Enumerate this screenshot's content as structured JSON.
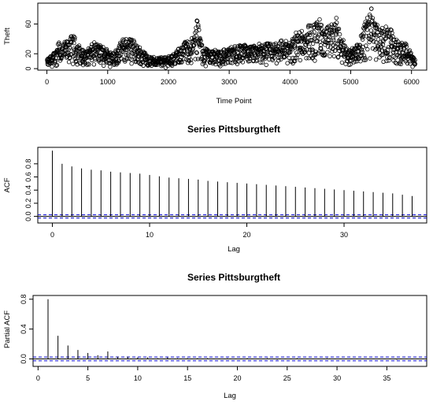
{
  "chart_data": [
    {
      "type": "scatter",
      "title": "",
      "xlabel": "Time Point",
      "ylabel": "Theft",
      "xlim": [
        -150,
        6250
      ],
      "ylim": [
        -2,
        88
      ],
      "xticks": [
        0,
        1000,
        2000,
        3000,
        4000,
        5000,
        6000
      ],
      "yticks": [
        0,
        20,
        60
      ],
      "marker": "open-circle",
      "envelope": [
        [
          0,
          12
        ],
        [
          150,
          25
        ],
        [
          180,
          45
        ],
        [
          220,
          30
        ],
        [
          420,
          45
        ],
        [
          600,
          22
        ],
        [
          780,
          35
        ],
        [
          950,
          28
        ],
        [
          1100,
          22
        ],
        [
          1250,
          40
        ],
        [
          1380,
          42
        ],
        [
          1500,
          30
        ],
        [
          1700,
          15
        ],
        [
          1900,
          15
        ],
        [
          2100,
          20
        ],
        [
          2250,
          35
        ],
        [
          2400,
          42
        ],
        [
          2470,
          70
        ],
        [
          2550,
          30
        ],
        [
          2700,
          25
        ],
        [
          2900,
          25
        ],
        [
          3050,
          30
        ],
        [
          3200,
          32
        ],
        [
          3400,
          30
        ],
        [
          3550,
          35
        ],
        [
          3700,
          32
        ],
        [
          3850,
          40
        ],
        [
          4000,
          35
        ],
        [
          4100,
          50
        ],
        [
          4200,
          55
        ],
        [
          4300,
          60
        ],
        [
          4400,
          62
        ],
        [
          4480,
          68
        ],
        [
          4550,
          50
        ],
        [
          4650,
          60
        ],
        [
          4750,
          68
        ],
        [
          4850,
          40
        ],
        [
          4950,
          25
        ],
        [
          5050,
          30
        ],
        [
          5150,
          40
        ],
        [
          5250,
          70
        ],
        [
          5300,
          80
        ],
        [
          5350,
          85
        ],
        [
          5400,
          60
        ],
        [
          5500,
          55
        ],
        [
          5600,
          55
        ],
        [
          5700,
          50
        ],
        [
          5800,
          35
        ],
        [
          5900,
          35
        ],
        [
          6000,
          20
        ],
        [
          6050,
          12
        ]
      ]
    },
    {
      "type": "bar",
      "title": "Series  Pittsburgtheft",
      "xlabel": "Lag",
      "ylabel": "ACF",
      "xlim": [
        -1.5,
        38.5
      ],
      "ylim": [
        -0.1,
        1.05
      ],
      "xticks": [
        0,
        10,
        20,
        30
      ],
      "yticks": [
        0,
        0.2,
        0.4,
        0.6,
        0.8
      ],
      "confidence_band": 0.025,
      "lags": [
        0,
        1,
        2,
        3,
        4,
        5,
        6,
        7,
        8,
        9,
        10,
        11,
        12,
        13,
        14,
        15,
        16,
        17,
        18,
        19,
        20,
        21,
        22,
        23,
        24,
        25,
        26,
        27,
        28,
        29,
        30,
        31,
        32,
        33,
        34,
        35,
        36,
        37
      ],
      "values": [
        1.0,
        0.8,
        0.76,
        0.73,
        0.71,
        0.7,
        0.68,
        0.67,
        0.66,
        0.65,
        0.63,
        0.61,
        0.59,
        0.58,
        0.57,
        0.56,
        0.54,
        0.53,
        0.52,
        0.51,
        0.5,
        0.49,
        0.48,
        0.47,
        0.46,
        0.45,
        0.44,
        0.43,
        0.42,
        0.41,
        0.4,
        0.39,
        0.38,
        0.37,
        0.36,
        0.35,
        0.33,
        0.31
      ]
    },
    {
      "type": "bar",
      "title": "Series  Pittsburgtheft",
      "xlabel": "Lag",
      "ylabel": "Partial ACF",
      "xlim": [
        -0.5,
        39
      ],
      "ylim": [
        -0.1,
        0.85
      ],
      "xticks": [
        0,
        5,
        10,
        15,
        20,
        25,
        30,
        35
      ],
      "yticks": [
        0,
        0.4,
        0.8
      ],
      "confidence_band": 0.025,
      "lags": [
        1,
        2,
        3,
        4,
        5,
        6,
        7,
        8,
        9,
        10,
        11,
        12,
        13,
        14,
        15,
        16,
        17,
        18,
        19,
        20,
        21,
        22,
        23,
        24,
        25,
        26,
        27,
        28,
        29,
        30,
        31,
        32,
        33,
        34,
        35,
        36,
        37
      ],
      "values": [
        0.8,
        0.31,
        0.18,
        0.12,
        0.08,
        0.05,
        0.1,
        0.03,
        0.03,
        0.02,
        0.02,
        0.01,
        0.02,
        0.01,
        0.01,
        0.01,
        0.01,
        0.0,
        0.01,
        0.0,
        0.01,
        0.0,
        0.01,
        -0.01,
        0.0,
        0.01,
        0.0,
        0.0,
        0.01,
        0.0,
        0.0,
        0.0,
        0.0,
        0.0,
        0.0,
        -0.01,
        0.0
      ]
    }
  ]
}
